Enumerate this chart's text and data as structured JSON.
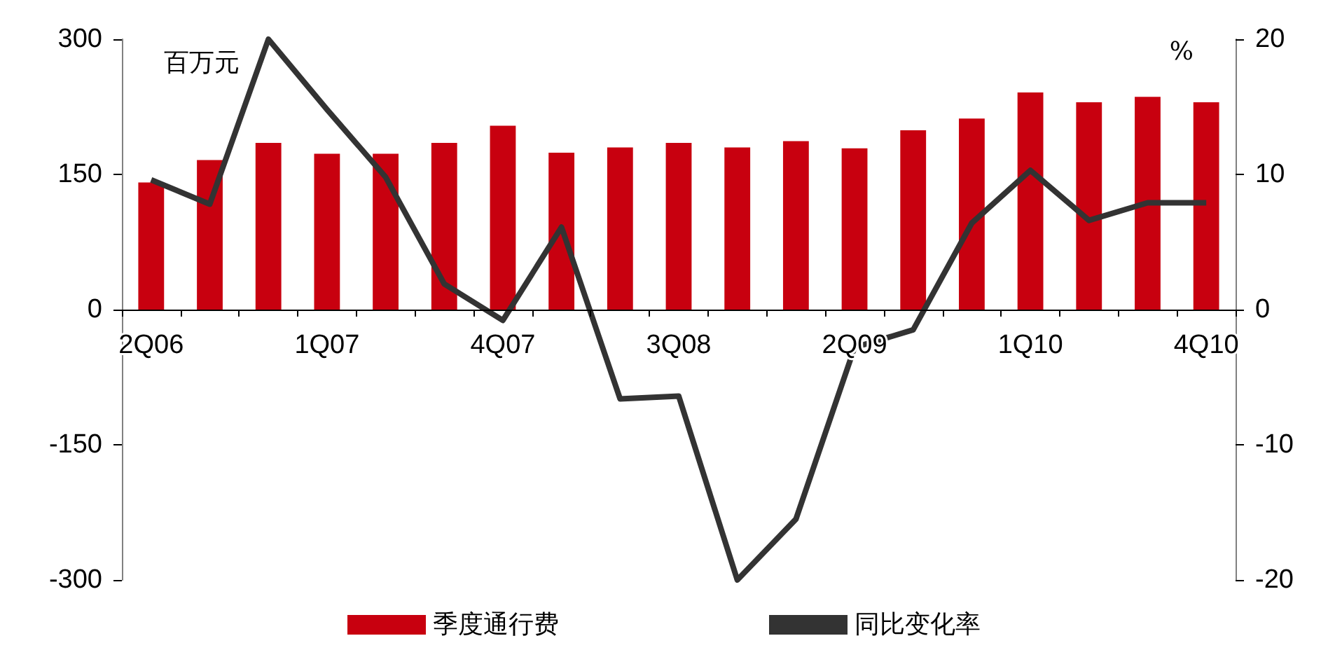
{
  "chart_data": {
    "type": "bar",
    "categories": [
      "2Q06",
      null,
      null,
      "1Q07",
      null,
      null,
      "4Q07",
      null,
      null,
      "3Q08",
      null,
      null,
      "2Q09",
      null,
      null,
      "1Q10",
      null,
      null,
      "4Q10"
    ],
    "series": [
      {
        "name": "季度通行费",
        "color": "#c8000f",
        "values": [
          141,
          166,
          185,
          173,
          173,
          185,
          204,
          174,
          180,
          185,
          180,
          187,
          179,
          199,
          212,
          241,
          230,
          236,
          230
        ]
      },
      {
        "name": "同比变化率",
        "type": "line",
        "axis": "y2",
        "color": "#333333",
        "values": [
          9.6,
          7.8,
          20,
          14.8,
          9.8,
          1.9,
          -0.8,
          6.1,
          -6.6,
          -6.4,
          -20,
          -15.5,
          -2.8,
          -1.5,
          6.4,
          10.3,
          6.6,
          7.9,
          7.9
        ]
      }
    ],
    "ylabel": "百万元",
    "y2label": "%",
    "ylim": [
      -300,
      300
    ],
    "yticks": [
      -300,
      -150,
      0,
      150,
      300
    ],
    "y2lim": [
      -20,
      20
    ],
    "y2ticks": [
      -20,
      -10,
      0,
      10,
      20
    ],
    "legend": "bottom",
    "grid": false,
    "marker": "none",
    "line_style": "solid"
  }
}
